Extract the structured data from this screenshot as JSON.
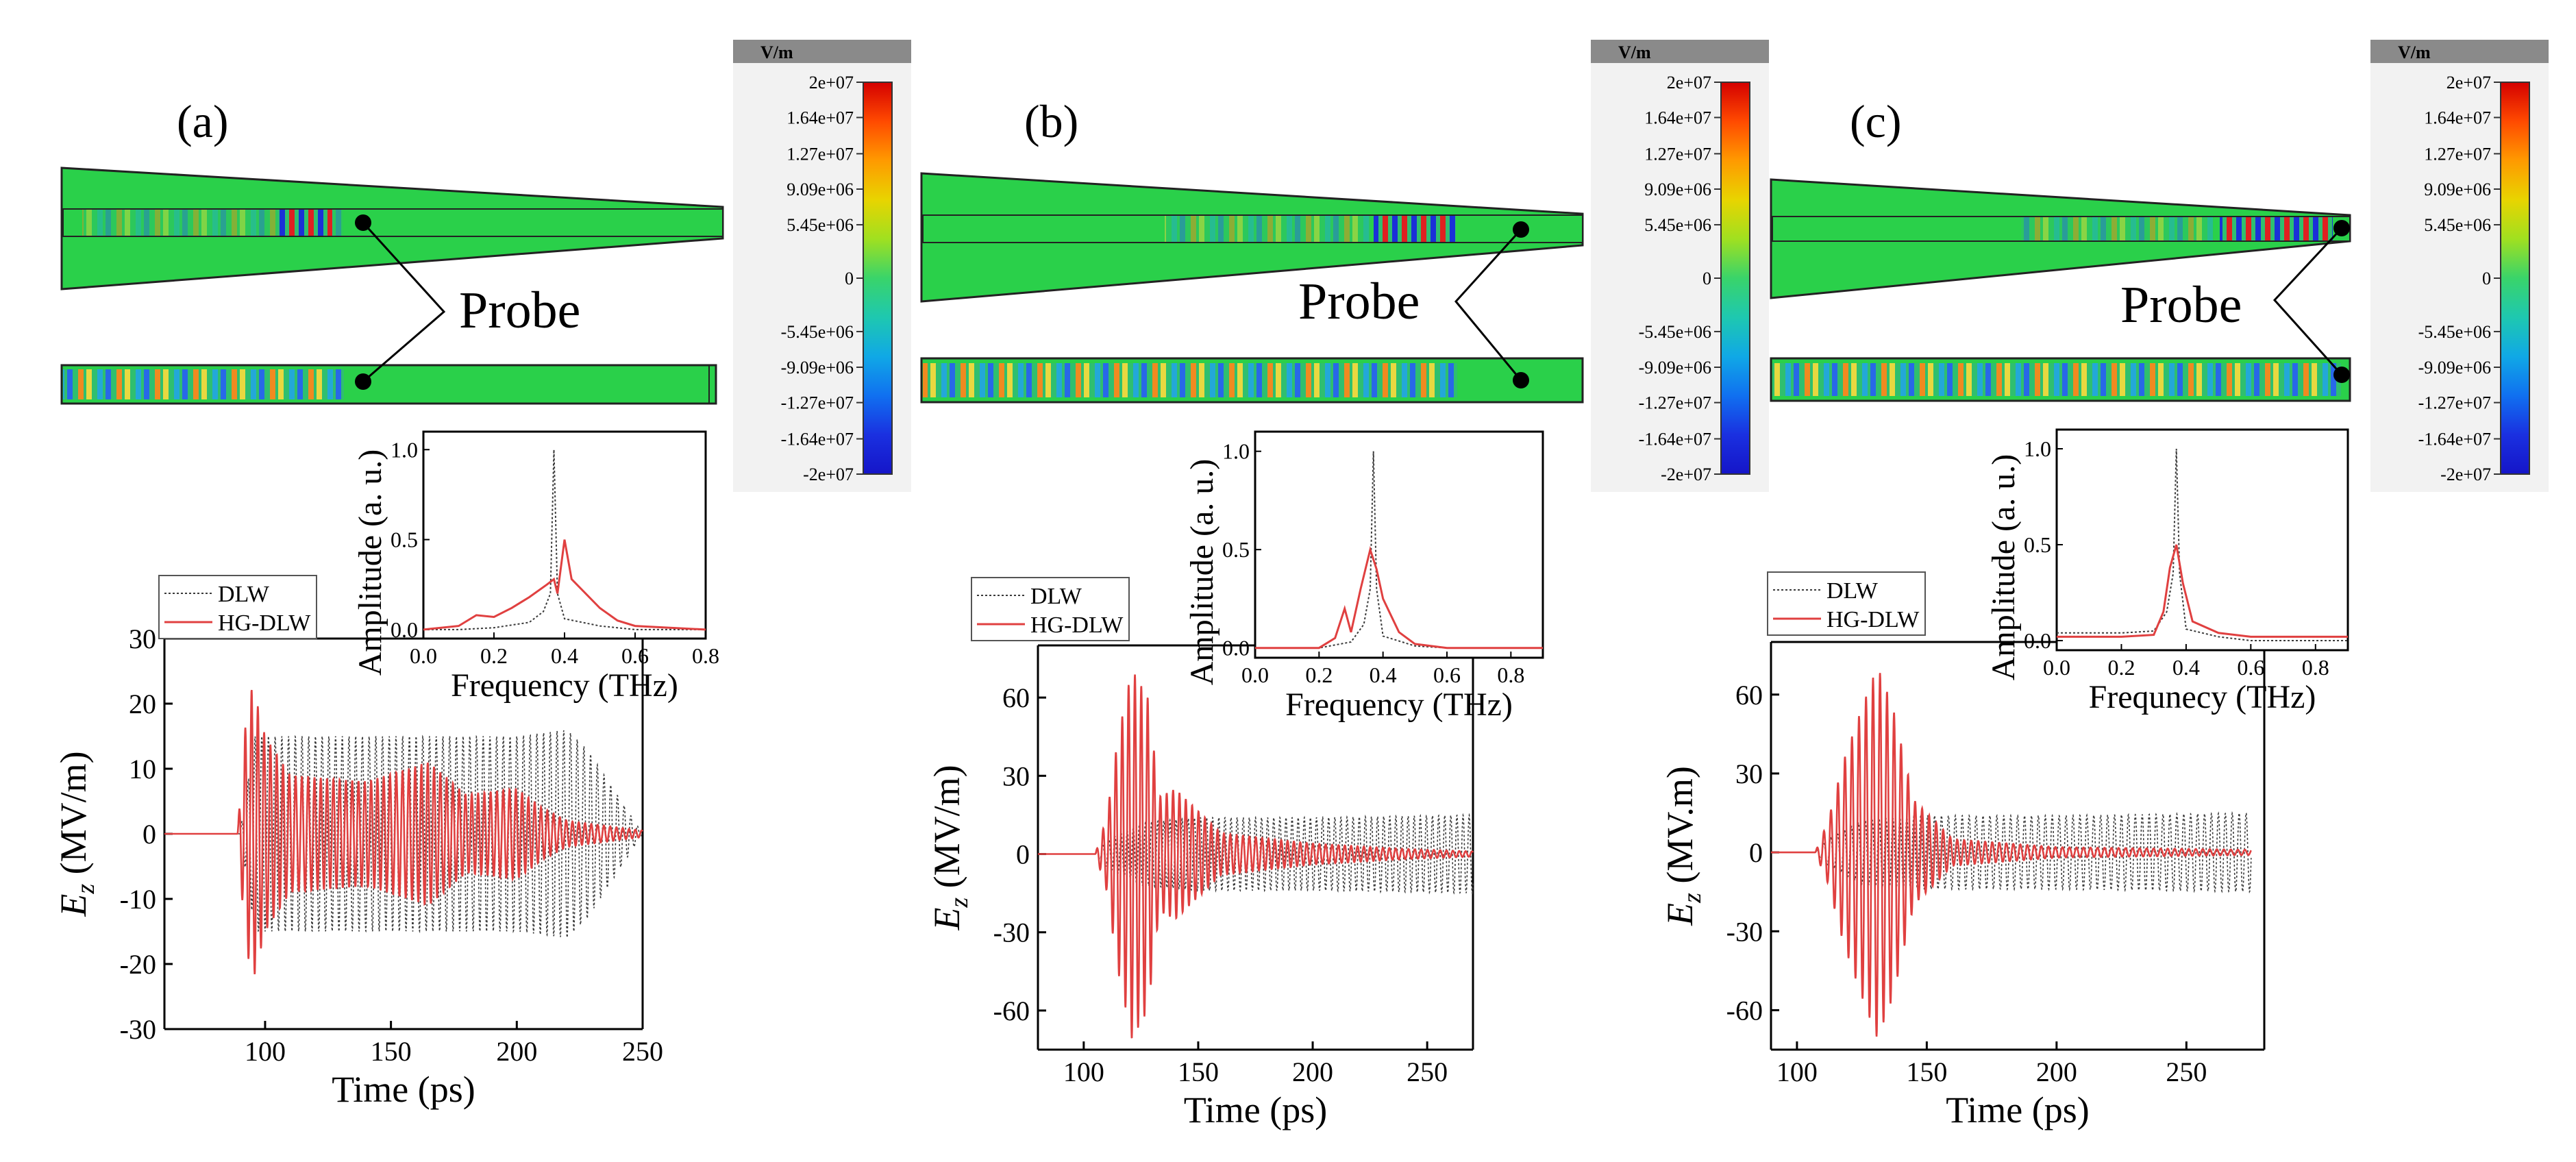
{
  "figure": {
    "panel_labels": [
      "(a)",
      "(b)",
      "(c)"
    ],
    "probe_label": "Probe"
  },
  "colorbar": {
    "unit": "V/m",
    "ticks": [
      "2e+07",
      "1.64e+07",
      "1.27e+07",
      "9.09e+06",
      "5.45e+06",
      "0",
      "-5.45e+06",
      "-9.09e+06",
      "-1.27e+07",
      "-1.64e+07",
      "-2e+07"
    ],
    "tick_values": [
      20000000,
      16400000,
      12700000,
      9090000,
      5450000,
      0,
      -5450000,
      -9090000,
      -12700000,
      -16400000,
      -20000000
    ],
    "range": [
      -20000000,
      20000000
    ],
    "colors": {
      "max": "#d40000",
      "mid": "#39d46a",
      "min": "#1515c8",
      "background": "#2ad04a"
    }
  },
  "colors": {
    "dlw": "#3a3a3a",
    "hg_dlw": "#e04040"
  },
  "chart_data": [
    {
      "panel": "(a)",
      "type": "line",
      "main": {
        "xlabel": "Time (ps)",
        "ylabel_main": "E",
        "ylabel_sub": "z",
        "ylabel_unit": " (MV/m)",
        "xlim": [
          60,
          250
        ],
        "ylim": [
          -30,
          30
        ],
        "xticks": [
          100,
          150,
          200,
          250
        ],
        "xtick_labels": [
          "100",
          "150",
          "200",
          "250"
        ],
        "yticks": [
          -30,
          -20,
          -10,
          0,
          10,
          20,
          30
        ],
        "ytick_labels": [
          "-30",
          "-20",
          "-10",
          "0",
          "10",
          "20",
          "30"
        ],
        "series": [
          {
            "name": "DLW",
            "style": "dotted",
            "start": 90,
            "end": 250,
            "freq_thz": 0.375,
            "envelope": {
              "t": [
                90,
                96,
                100,
                150,
                200,
                220,
                228,
                250
              ],
              "a": [
                0,
                15,
                15,
                15,
                15,
                16,
                13,
                0
              ]
            }
          },
          {
            "name": "HG-DLW",
            "style": "solid",
            "start": 89,
            "end": 250,
            "freq_thz": 0.4,
            "envelope": {
              "t": [
                89,
                92,
                95,
                100,
                110,
                140,
                165,
                180,
                200,
                210,
                220,
                250
              ],
              "a": [
                0,
                16,
                23,
                15,
                9,
                8,
                11,
                6,
                7,
                4,
                2,
                0.5
              ]
            }
          }
        ]
      },
      "inset": {
        "xlabel": "Frequency (THz)",
        "ylabel": "Amplitude (a. u.)",
        "xlim": [
          0.0,
          0.8
        ],
        "ylim": [
          -0.05,
          1.1
        ],
        "xticks": [
          0.0,
          0.2,
          0.4,
          0.6,
          0.8
        ],
        "xtick_labels": [
          "0.0",
          "0.2",
          "0.4",
          "0.6",
          "0.8"
        ],
        "yticks": [
          0.0,
          0.5,
          1.0
        ],
        "ytick_labels": [
          "0.0",
          "0.5",
          "1.0"
        ],
        "series": [
          {
            "name": "DLW",
            "style": "dotted",
            "points": [
              [
                0.0,
                0.0
              ],
              [
                0.1,
                0.0
              ],
              [
                0.2,
                0.01
              ],
              [
                0.3,
                0.04
              ],
              [
                0.34,
                0.1
              ],
              [
                0.36,
                0.2
              ],
              [
                0.37,
                1.0
              ],
              [
                0.38,
                0.2
              ],
              [
                0.4,
                0.06
              ],
              [
                0.5,
                0.02
              ],
              [
                0.6,
                0.0
              ],
              [
                0.8,
                0.0
              ]
            ]
          },
          {
            "name": "HG-DLW",
            "style": "solid",
            "points": [
              [
                0.0,
                0.0
              ],
              [
                0.1,
                0.02
              ],
              [
                0.15,
                0.08
              ],
              [
                0.2,
                0.07
              ],
              [
                0.25,
                0.12
              ],
              [
                0.3,
                0.18
              ],
              [
                0.35,
                0.25
              ],
              [
                0.37,
                0.28
              ],
              [
                0.38,
                0.2
              ],
              [
                0.4,
                0.5
              ],
              [
                0.42,
                0.28
              ],
              [
                0.5,
                0.12
              ],
              [
                0.55,
                0.05
              ],
              [
                0.6,
                0.02
              ],
              [
                0.8,
                0.0
              ]
            ]
          }
        ]
      },
      "legend": [
        "DLW",
        "HG-DLW"
      ]
    },
    {
      "panel": "(b)",
      "type": "line",
      "main": {
        "xlabel": "Time (ps)",
        "ylabel_main": "E",
        "ylabel_sub": "z",
        "ylabel_unit": " (MV/m)",
        "xlim": [
          80,
          270
        ],
        "ylim": [
          -75,
          80
        ],
        "xticks": [
          100,
          150,
          200,
          250
        ],
        "xtick_labels": [
          "100",
          "150",
          "200",
          "250"
        ],
        "yticks": [
          -60,
          -30,
          0,
          30,
          60
        ],
        "ytick_labels": [
          "-60",
          "-30",
          "0",
          "30",
          "60"
        ],
        "series": [
          {
            "name": "DLW",
            "style": "dotted",
            "start": 105,
            "end": 270,
            "freq_thz": 0.375,
            "envelope": {
              "t": [
                105,
                110,
                125,
                150,
                200,
                270
              ],
              "a": [
                0,
                5,
                12,
                14,
                14,
                15
              ]
            }
          },
          {
            "name": "HG-DLW",
            "style": "solid",
            "start": 105,
            "end": 270,
            "freq_thz": 0.36,
            "envelope": {
              "t": [
                105,
                110,
                115,
                121,
                128,
                133,
                140,
                160,
                200,
                240,
                270
              ],
              "a": [
                0,
                14,
                45,
                71,
                60,
                22,
                25,
                8,
                4,
                2,
                1
              ]
            }
          }
        ]
      },
      "inset": {
        "xlabel": "Frequency (THz)",
        "ylabel": "Amplitude (a. u.)",
        "xlim": [
          0.0,
          0.9
        ],
        "ylim": [
          -0.05,
          1.1
        ],
        "xticks": [
          0.0,
          0.2,
          0.4,
          0.6,
          0.8
        ],
        "xtick_labels": [
          "0.0",
          "0.2",
          "0.4",
          "0.6",
          "0.8"
        ],
        "yticks": [
          0.0,
          0.5,
          1.0
        ],
        "ytick_labels": [
          "0.0",
          "0.5",
          "1.0"
        ],
        "series": [
          {
            "name": "DLW",
            "style": "dotted",
            "points": [
              [
                0.0,
                0.0
              ],
              [
                0.2,
                0.0
              ],
              [
                0.3,
                0.03
              ],
              [
                0.34,
                0.12
              ],
              [
                0.36,
                0.3
              ],
              [
                0.37,
                1.0
              ],
              [
                0.38,
                0.3
              ],
              [
                0.4,
                0.06
              ],
              [
                0.5,
                0.01
              ],
              [
                0.6,
                0.0
              ],
              [
                0.9,
                0.0
              ]
            ]
          },
          {
            "name": "HG-DLW",
            "style": "solid",
            "points": [
              [
                0.0,
                0.0
              ],
              [
                0.2,
                0.0
              ],
              [
                0.25,
                0.05
              ],
              [
                0.28,
                0.2
              ],
              [
                0.3,
                0.08
              ],
              [
                0.33,
                0.3
              ],
              [
                0.36,
                0.5
              ],
              [
                0.38,
                0.4
              ],
              [
                0.4,
                0.25
              ],
              [
                0.45,
                0.08
              ],
              [
                0.5,
                0.02
              ],
              [
                0.6,
                0.0
              ],
              [
                0.9,
                0.0
              ]
            ]
          }
        ]
      },
      "legend": [
        "DLW",
        "HG-DLW"
      ]
    },
    {
      "panel": "(c)",
      "type": "line",
      "main": {
        "xlabel": "Time (ps)",
        "ylabel_main": "E",
        "ylabel_sub": "z",
        "ylabel_unit": " (MV.m)",
        "xlim": [
          90,
          280
        ],
        "ylim": [
          -75,
          80
        ],
        "xticks": [
          100,
          150,
          200,
          250
        ],
        "xtick_labels": [
          "100",
          "150",
          "200",
          "250"
        ],
        "yticks": [
          -60,
          -30,
          0,
          30,
          60
        ],
        "ytick_labels": [
          "-60",
          "-30",
          "0",
          "30",
          "60"
        ],
        "series": [
          {
            "name": "DLW",
            "style": "dotted",
            "start": 107,
            "end": 275,
            "freq_thz": 0.375,
            "envelope": {
              "t": [
                107,
                112,
                125,
                150,
                200,
                275
              ],
              "a": [
                0,
                5,
                12,
                14,
                14,
                15
              ]
            }
          },
          {
            "name": "HG-DLW",
            "style": "solid",
            "start": 107,
            "end": 275,
            "freq_thz": 0.37,
            "envelope": {
              "t": [
                107,
                112,
                118,
                125,
                131,
                137,
                145,
                160,
                200,
                275
              ],
              "a": [
                0,
                12,
                35,
                55,
                71,
                55,
                20,
                5,
                2,
                1
              ]
            }
          }
        ]
      },
      "inset": {
        "xlabel": "Frequnecy (THz)",
        "ylabel": "Amplitude (a. u.)",
        "xlim": [
          0.0,
          0.9
        ],
        "ylim": [
          -0.05,
          1.1
        ],
        "xticks": [
          0.0,
          0.2,
          0.4,
          0.6,
          0.8
        ],
        "xtick_labels": [
          "0.0",
          "0.2",
          "0.4",
          "0.6",
          "0.8"
        ],
        "yticks": [
          0.0,
          0.5,
          1.0
        ],
        "ytick_labels": [
          "0.0",
          "0.5",
          "1.0"
        ],
        "series": [
          {
            "name": "DLW",
            "style": "dotted",
            "points": [
              [
                0.0,
                0.04
              ],
              [
                0.2,
                0.04
              ],
              [
                0.3,
                0.05
              ],
              [
                0.34,
                0.15
              ],
              [
                0.36,
                0.35
              ],
              [
                0.37,
                1.0
              ],
              [
                0.38,
                0.35
              ],
              [
                0.4,
                0.06
              ],
              [
                0.5,
                0.02
              ],
              [
                0.6,
                0.0
              ],
              [
                0.9,
                0.0
              ]
            ]
          },
          {
            "name": "HG-DLW",
            "style": "solid",
            "points": [
              [
                0.0,
                0.02
              ],
              [
                0.2,
                0.02
              ],
              [
                0.3,
                0.03
              ],
              [
                0.33,
                0.15
              ],
              [
                0.35,
                0.38
              ],
              [
                0.37,
                0.5
              ],
              [
                0.39,
                0.3
              ],
              [
                0.42,
                0.1
              ],
              [
                0.5,
                0.04
              ],
              [
                0.6,
                0.02
              ],
              [
                0.9,
                0.02
              ]
            ]
          }
        ]
      },
      "legend": [
        "DLW",
        "HG-DLW"
      ]
    }
  ]
}
